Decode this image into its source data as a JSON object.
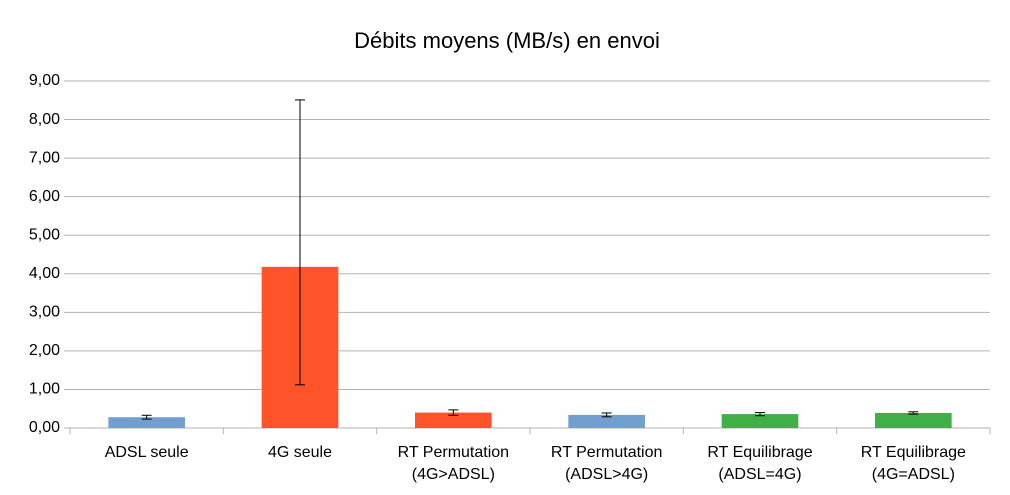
{
  "chart_data": {
    "type": "bar",
    "title": "Débits moyens (MB/s) en envoi",
    "categories": [
      [
        "ADSL seule"
      ],
      [
        "4G seule"
      ],
      [
        "RT Permutation",
        "(4G>ADSL)"
      ],
      [
        "RT Permutation",
        "(ADSL>4G)"
      ],
      [
        "RT Equilibrage",
        "(ADSL=4G)"
      ],
      [
        "RT Equilibrage",
        "(4G=ADSL)"
      ]
    ],
    "values": [
      0.28,
      4.18,
      0.4,
      0.34,
      0.36,
      0.39
    ],
    "error_minus": [
      0.05,
      3.06,
      0.07,
      0.05,
      0.04,
      0.03
    ],
    "error_plus": [
      0.05,
      4.33,
      0.07,
      0.05,
      0.04,
      0.03
    ],
    "colors": [
      "#729fcf",
      "#ff5429",
      "#ff5429",
      "#729fcf",
      "#3faf46",
      "#3faf46"
    ],
    "ylim": [
      0,
      9
    ],
    "yticks": [
      {
        "value": 0,
        "label": "0,00"
      },
      {
        "value": 1,
        "label": "1,00"
      },
      {
        "value": 2,
        "label": "2,00"
      },
      {
        "value": 3,
        "label": "3,00"
      },
      {
        "value": 4,
        "label": "4,00"
      },
      {
        "value": 5,
        "label": "5,00"
      },
      {
        "value": 6,
        "label": "6,00"
      },
      {
        "value": 7,
        "label": "7,00"
      },
      {
        "value": 8,
        "label": "8,00"
      },
      {
        "value": 9,
        "label": "9,00"
      }
    ],
    "grid": true
  }
}
